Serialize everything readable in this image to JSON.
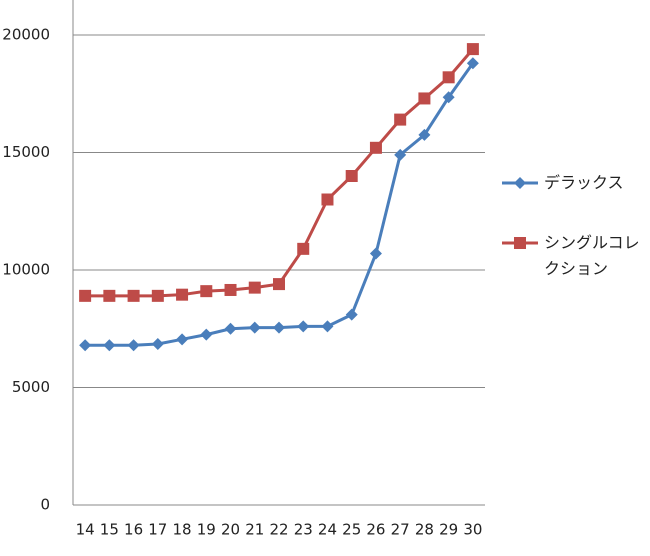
{
  "chart_data": {
    "type": "line",
    "categories": [
      "14",
      "15",
      "16",
      "17",
      "18",
      "19",
      "20",
      "21",
      "22",
      "23",
      "24",
      "25",
      "26",
      "27",
      "28",
      "29",
      "30"
    ],
    "series": [
      {
        "name": "デラックス",
        "color": "#4a7ebb",
        "marker": "diamond",
        "values": [
          6800,
          6800,
          6800,
          6850,
          7050,
          7250,
          7500,
          7550,
          7550,
          7600,
          7600,
          8100,
          10700,
          14900,
          15750,
          17350,
          18800
        ]
      },
      {
        "name": "シングルコレクション",
        "color": "#be4b48",
        "marker": "square",
        "values": [
          8900,
          8900,
          8900,
          8900,
          8950,
          9100,
          9150,
          9250,
          9400,
          10900,
          13000,
          14000,
          15200,
          16400,
          17300,
          18200,
          19400
        ]
      }
    ],
    "ylim": [
      0,
      21500
    ],
    "yticks": [
      0,
      5000,
      10000,
      15000,
      20000
    ],
    "grid": true,
    "legend": "right"
  }
}
